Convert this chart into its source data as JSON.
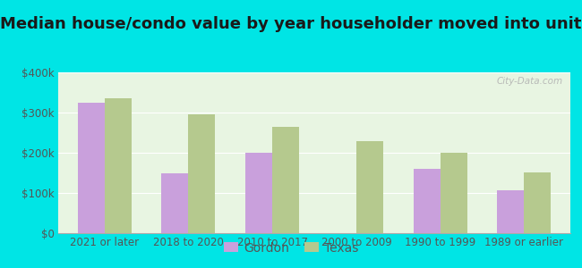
{
  "title": "Median house/condo value by year householder moved into unit",
  "categories": [
    "2021 or later",
    "2018 to 2020",
    "2010 to 2017",
    "2000 to 2009",
    "1990 to 1999",
    "1989 or earlier"
  ],
  "gordon_values": [
    325000,
    150000,
    200000,
    0,
    160000,
    107000
  ],
  "texas_values": [
    335000,
    295000,
    265000,
    228000,
    200000,
    152000
  ],
  "gordon_color": "#c9a0dc",
  "texas_color": "#b5c98e",
  "background_outer": "#00e5e5",
  "background_inner": "#e8f5e2",
  "ylim": [
    0,
    400000
  ],
  "yticks": [
    0,
    100000,
    200000,
    300000,
    400000
  ],
  "ytick_labels": [
    "$0",
    "$100k",
    "$200k",
    "$300k",
    "$400k"
  ],
  "bar_width": 0.32,
  "legend_gordon": "Gordon",
  "legend_texas": "Texas",
  "title_fontsize": 13,
  "tick_fontsize": 8.5,
  "legend_fontsize": 10,
  "title_color": "#1a1a1a",
  "tick_color": "#555555",
  "watermark": "City-Data.com"
}
